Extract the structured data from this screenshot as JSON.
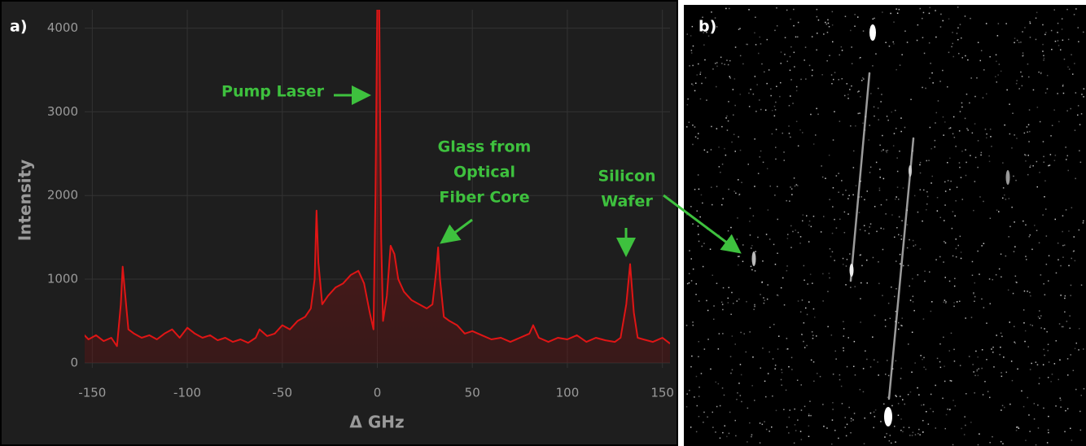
{
  "chart_data": {
    "type": "line",
    "panel_label": "a)",
    "x_label": "Δ GHz",
    "y_label": "Intensity",
    "color": "#e01515",
    "grid": true,
    "xlim": [
      -154,
      154
    ],
    "ylim": [
      -60,
      4220
    ],
    "xticks": [
      -150,
      -100,
      -50,
      0,
      50,
      100,
      150
    ],
    "yticks": [
      0,
      1000,
      2000,
      3000,
      4000
    ],
    "x": [
      -155,
      -152,
      -148,
      -144,
      -140,
      -137,
      -135,
      -134,
      -133,
      -131,
      -128,
      -124,
      -120,
      -116,
      -112,
      -108,
      -104,
      -100,
      -96,
      -92,
      -88,
      -84,
      -80,
      -76,
      -72,
      -68,
      -64,
      -62,
      -58,
      -54,
      -50,
      -46,
      -42,
      -38,
      -35,
      -33,
      -32,
      -31,
      -29,
      -26,
      -22,
      -18,
      -14,
      -10,
      -7,
      -4,
      -2,
      -1,
      0,
      1,
      2,
      3,
      5,
      7,
      9,
      11,
      14,
      18,
      22,
      26,
      29,
      31,
      32,
      33,
      35,
      38,
      42,
      46,
      50,
      55,
      60,
      65,
      70,
      75,
      80,
      82,
      85,
      90,
      95,
      100,
      105,
      110,
      115,
      120,
      125,
      128,
      131,
      133,
      135,
      137,
      140,
      145,
      150,
      154
    ],
    "values": [
      350,
      280,
      330,
      260,
      300,
      200,
      700,
      1150,
      900,
      400,
      350,
      300,
      330,
      280,
      350,
      400,
      300,
      420,
      350,
      300,
      330,
      270,
      300,
      250,
      280,
      240,
      300,
      400,
      320,
      350,
      450,
      400,
      500,
      550,
      650,
      1000,
      1820,
      1200,
      700,
      800,
      900,
      950,
      1050,
      1100,
      950,
      600,
      400,
      2000,
      4300,
      4300,
      1500,
      500,
      800,
      1400,
      1300,
      1000,
      850,
      750,
      700,
      650,
      700,
      1100,
      1380,
      1000,
      550,
      500,
      450,
      350,
      380,
      330,
      280,
      300,
      250,
      300,
      350,
      450,
      300,
      250,
      300,
      280,
      330,
      250,
      300,
      270,
      250,
      300,
      700,
      1180,
      600,
      300,
      280,
      250,
      300,
      230
    ],
    "annotations": [
      {
        "lines": [
          "Pump Laser"
        ]
      },
      {
        "lines": [
          "Glass from",
          "Optical",
          "Fiber Core"
        ]
      },
      {
        "lines": [
          "Silicon",
          "Wafer"
        ]
      }
    ]
  },
  "panel_b": {
    "label": "b)"
  }
}
